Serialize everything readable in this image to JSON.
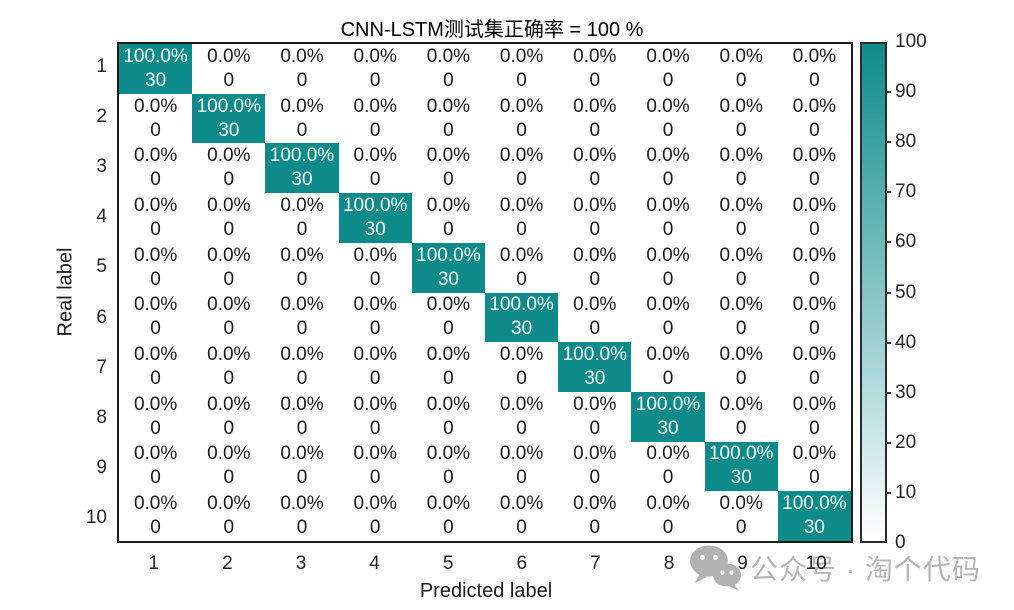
{
  "chart_data": {
    "type": "heatmap",
    "subtype": "confusion_matrix",
    "title": "CNN-LSTM测试集正确率 = 100 %",
    "xlabel": "Predicted label",
    "ylabel": "Real label",
    "classes": [
      "1",
      "2",
      "3",
      "4",
      "5",
      "6",
      "7",
      "8",
      "9",
      "10"
    ],
    "counts": [
      [
        30,
        0,
        0,
        0,
        0,
        0,
        0,
        0,
        0,
        0
      ],
      [
        0,
        30,
        0,
        0,
        0,
        0,
        0,
        0,
        0,
        0
      ],
      [
        0,
        0,
        30,
        0,
        0,
        0,
        0,
        0,
        0,
        0
      ],
      [
        0,
        0,
        0,
        30,
        0,
        0,
        0,
        0,
        0,
        0
      ],
      [
        0,
        0,
        0,
        0,
        30,
        0,
        0,
        0,
        0,
        0
      ],
      [
        0,
        0,
        0,
        0,
        0,
        30,
        0,
        0,
        0,
        0
      ],
      [
        0,
        0,
        0,
        0,
        0,
        0,
        30,
        0,
        0,
        0
      ],
      [
        0,
        0,
        0,
        0,
        0,
        0,
        0,
        30,
        0,
        0
      ],
      [
        0,
        0,
        0,
        0,
        0,
        0,
        0,
        0,
        30,
        0
      ],
      [
        0,
        0,
        0,
        0,
        0,
        0,
        0,
        0,
        0,
        30
      ]
    ],
    "percent_decimals": 1,
    "cell_shows": [
      "percent",
      "count"
    ],
    "colorbar": {
      "min": 0,
      "max": 100,
      "ticks": [
        0,
        10,
        20,
        30,
        40,
        50,
        60,
        70,
        80,
        90,
        100
      ]
    },
    "colors": {
      "high": "#0d8b8b",
      "low": "#ffffff",
      "text_on_high": "#ffffff",
      "text_on_low": "#1a1a1a",
      "axis": "#1a1a1a"
    }
  },
  "watermark": {
    "icon": "wechat-icon",
    "text": "公众号 · 淘个代码",
    "color": "#b5b5b5"
  }
}
